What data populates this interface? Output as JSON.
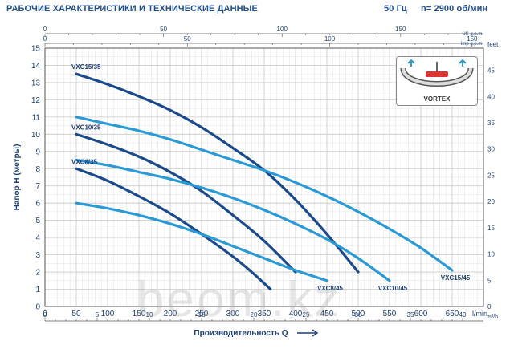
{
  "header": {
    "title": "РАБОЧИЕ ХАРАКТЕРИСТИКИ И ТЕХНИЧЕСКИЕ ДАННЫЕ",
    "frequency": "50 Гц",
    "speed": "n= 2900 об/мин"
  },
  "watermark": "beom.kz",
  "inset": {
    "label": "VORTEX"
  },
  "colors": {
    "dark_series": "#1a4a8c",
    "light_series": "#2a9ad6",
    "grid": "#c8c8c8",
    "text": "#1f3f75"
  },
  "chart_data": {
    "type": "line",
    "title": "",
    "ylabel": "Напор H (метры)",
    "xlabel": "Производительность Q",
    "x_unit": "l/min",
    "xlim": [
      0,
      700
    ],
    "ylim": [
      0,
      15
    ],
    "y_ticks": [
      0,
      1,
      2,
      3,
      4,
      5,
      6,
      7,
      8,
      9,
      10,
      11,
      12,
      13,
      14,
      15
    ],
    "x_ticks": [
      0,
      50,
      100,
      150,
      200,
      250,
      300,
      350,
      400,
      450,
      500,
      550,
      600,
      650
    ],
    "secondary_axes": {
      "feet": {
        "label": "feet",
        "ticks": [
          0,
          5,
          10,
          15,
          20,
          25,
          30,
          35,
          40,
          45
        ],
        "per_meter": 3.28084
      },
      "m3h": {
        "label": "m³/h",
        "ticks": [
          0,
          5,
          10,
          15,
          20,
          25,
          30,
          35,
          40
        ],
        "per_lmin": 0.06
      },
      "us_gpm": {
        "label": "US g.p.m.",
        "ticks": [
          0,
          50,
          100,
          150
        ],
        "per_lmin": 0.2642
      },
      "imp_gpm": {
        "label": "Imp g.p.m.",
        "ticks": [
          0,
          50,
          100,
          150
        ],
        "per_lmin": 0.22
      }
    },
    "grid": true,
    "series": [
      {
        "name": "VXC8/35",
        "label_side": "start",
        "style": "dark",
        "x": [
          50,
          100,
          150,
          200,
          250,
          300,
          330,
          360
        ],
        "y": [
          8,
          7.3,
          6.4,
          5.4,
          4.2,
          2.9,
          2,
          1
        ]
      },
      {
        "name": "VXC10/35",
        "label_side": "start",
        "style": "dark",
        "x": [
          50,
          100,
          150,
          200,
          250,
          300,
          350,
          400
        ],
        "y": [
          10,
          9.4,
          8.7,
          7.8,
          6.7,
          5.3,
          3.8,
          2
        ]
      },
      {
        "name": "VXC15/35",
        "label_side": "start",
        "style": "dark",
        "x": [
          50,
          100,
          150,
          200,
          250,
          300,
          350,
          400,
          450,
          500
        ],
        "y": [
          13.5,
          12.9,
          12.2,
          11.4,
          10.4,
          9.2,
          7.9,
          6.2,
          4.2,
          2
        ]
      },
      {
        "name": "VXC8/45",
        "label_side": "end",
        "style": "light",
        "x": [
          50,
          100,
          150,
          200,
          250,
          300,
          350,
          400,
          450
        ],
        "y": [
          6,
          5.7,
          5.3,
          4.8,
          4.2,
          3.5,
          2.8,
          2.1,
          1.5
        ]
      },
      {
        "name": "VXC10/45",
        "label_side": "end",
        "style": "light",
        "x": [
          50,
          100,
          150,
          200,
          250,
          300,
          350,
          400,
          450,
          500,
          550
        ],
        "y": [
          8.5,
          8.2,
          7.8,
          7.4,
          6.9,
          6.3,
          5.6,
          4.8,
          3.9,
          2.8,
          1.5
        ]
      },
      {
        "name": "VXC15/45",
        "label_side": "end",
        "style": "light",
        "x": [
          50,
          100,
          150,
          200,
          250,
          300,
          350,
          400,
          450,
          500,
          550,
          600,
          650
        ],
        "y": [
          11,
          10.6,
          10.2,
          9.7,
          9.1,
          8.5,
          7.9,
          7.2,
          6.4,
          5.5,
          4.5,
          3.4,
          2.1
        ]
      }
    ]
  }
}
